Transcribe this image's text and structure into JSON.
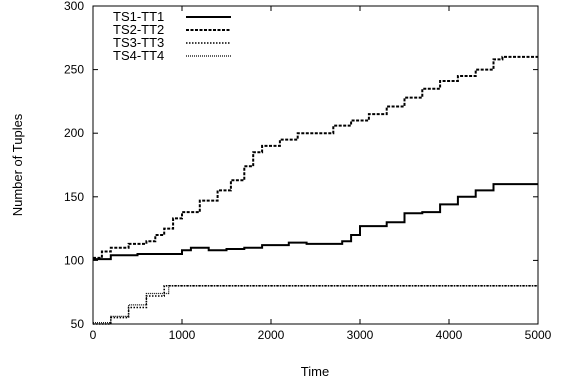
{
  "chart_data": {
    "type": "line",
    "title": "",
    "xlabel": "Time",
    "ylabel": "Number of Tuples",
    "xlim": [
      0,
      5000
    ],
    "ylim": [
      50,
      300
    ],
    "xticks": [
      0,
      1000,
      2000,
      3000,
      4000,
      5000
    ],
    "yticks": [
      50,
      100,
      150,
      200,
      250,
      300
    ],
    "grid": false,
    "legend_position": "top-left",
    "series": [
      {
        "name": "TS1-TT1",
        "style": "solid",
        "points": [
          [
            0,
            101
          ],
          [
            200,
            104
          ],
          [
            500,
            105
          ],
          [
            700,
            105
          ],
          [
            1000,
            108
          ],
          [
            1100,
            110
          ],
          [
            1300,
            108
          ],
          [
            1500,
            109
          ],
          [
            1700,
            110
          ],
          [
            1900,
            112
          ],
          [
            2100,
            112
          ],
          [
            2200,
            114
          ],
          [
            2400,
            113
          ],
          [
            2600,
            113
          ],
          [
            2800,
            115
          ],
          [
            2900,
            120
          ],
          [
            3000,
            127
          ],
          [
            3300,
            130
          ],
          [
            3500,
            137
          ],
          [
            3700,
            138
          ],
          [
            3900,
            144
          ],
          [
            4100,
            150
          ],
          [
            4300,
            155
          ],
          [
            4500,
            160
          ],
          [
            5000,
            160
          ]
        ]
      },
      {
        "name": "TS2-TT2",
        "style": "dashed",
        "points": [
          [
            0,
            102
          ],
          [
            100,
            107
          ],
          [
            200,
            110
          ],
          [
            400,
            113
          ],
          [
            600,
            115
          ],
          [
            700,
            120
          ],
          [
            800,
            125
          ],
          [
            900,
            133
          ],
          [
            1000,
            138
          ],
          [
            1200,
            147
          ],
          [
            1400,
            155
          ],
          [
            1550,
            163
          ],
          [
            1700,
            174
          ],
          [
            1800,
            185
          ],
          [
            1900,
            190
          ],
          [
            2100,
            195
          ],
          [
            2300,
            200
          ],
          [
            2500,
            200
          ],
          [
            2700,
            206
          ],
          [
            2900,
            210
          ],
          [
            3100,
            215
          ],
          [
            3300,
            221
          ],
          [
            3500,
            228
          ],
          [
            3700,
            235
          ],
          [
            3900,
            241
          ],
          [
            4100,
            245
          ],
          [
            4300,
            250
          ],
          [
            4500,
            258
          ],
          [
            4600,
            260
          ],
          [
            5000,
            260
          ]
        ]
      },
      {
        "name": "TS3-TT3",
        "style": "dotted",
        "points": [
          [
            0,
            50
          ],
          [
            200,
            55
          ],
          [
            400,
            63
          ],
          [
            600,
            72
          ],
          [
            800,
            80
          ],
          [
            5000,
            80
          ]
        ]
      },
      {
        "name": "TS4-TT4",
        "style": "fine-dotted",
        "points": [
          [
            0,
            51
          ],
          [
            200,
            56
          ],
          [
            400,
            65
          ],
          [
            600,
            74
          ],
          [
            850,
            80
          ],
          [
            5000,
            80
          ]
        ]
      }
    ]
  }
}
